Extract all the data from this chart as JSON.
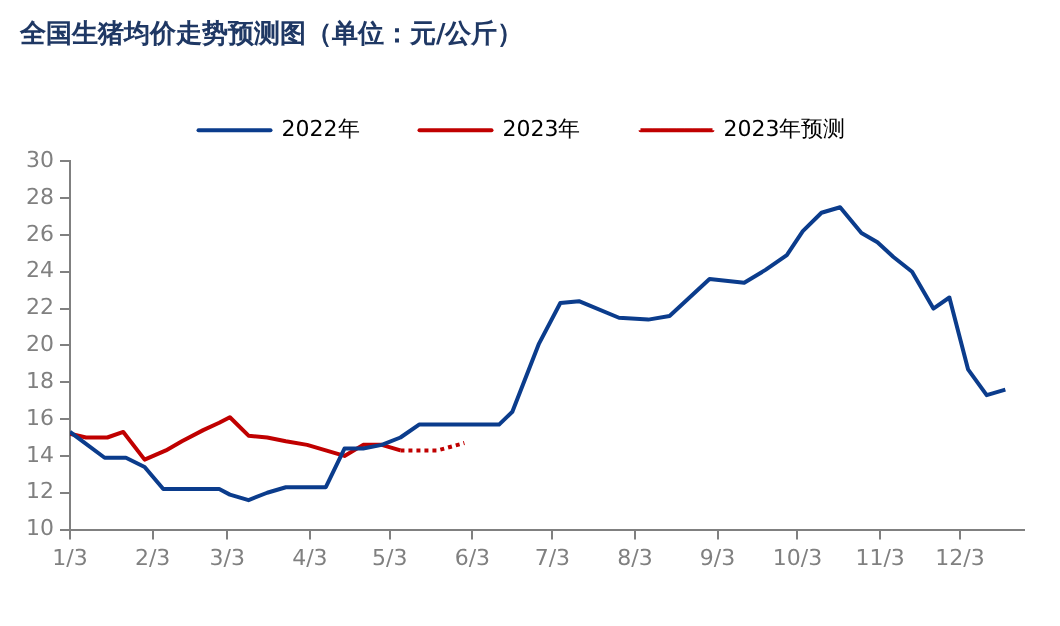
{
  "chart_data": {
    "type": "line",
    "title": "全国生猪均价走势预测图（单位：元/公斤）",
    "xlim": [
      "--01-03",
      "--12-27"
    ],
    "xticks": [
      {
        "value": "--01-03",
        "label": "1/3"
      },
      {
        "value": "--02-03",
        "label": "2/3"
      },
      {
        "value": "--03-03",
        "label": "3/3"
      },
      {
        "value": "--04-03",
        "label": "4/3"
      },
      {
        "value": "--05-03",
        "label": "5/3"
      },
      {
        "value": "--06-03",
        "label": "6/3"
      },
      {
        "value": "--07-03",
        "label": "7/3"
      },
      {
        "value": "--08-03",
        "label": "8/3"
      },
      {
        "value": "--09-03",
        "label": "9/3"
      },
      {
        "value": "--10-03",
        "label": "10/3"
      },
      {
        "value": "--11-03",
        "label": "11/3"
      },
      {
        "value": "--12-03",
        "label": "12/3"
      }
    ],
    "ylim": [
      10,
      30
    ],
    "yticks": [
      10,
      12,
      14,
      16,
      18,
      20,
      22,
      24,
      26,
      28,
      30
    ],
    "grid": false,
    "legend": "top",
    "marker": "none",
    "series": [
      {
        "name": "2022年",
        "color": "#0b3c8c",
        "line_style": "solid",
        "x": [
          "--01-03",
          "--01-16",
          "--01-24",
          "--01-31",
          "--02-07",
          "--02-14",
          "--02-21",
          "--02-28",
          "--03-04",
          "--03-11",
          "--03-18",
          "--03-25",
          "--04-02",
          "--04-09",
          "--04-16",
          "--04-23",
          "--04-30",
          "--05-07",
          "--05-14",
          "--05-22",
          "--05-30",
          "--06-13",
          "--06-18",
          "--06-28",
          "--07-06",
          "--07-13",
          "--07-28",
          "--08-08",
          "--08-16",
          "--08-31",
          "--09-13",
          "--09-21",
          "--09-29",
          "--10-05",
          "--10-12",
          "--10-19",
          "--10-27",
          "--11-02",
          "--11-08",
          "--11-15",
          "--11-23",
          "--11-29",
          "--12-06",
          "--12-13",
          "--12-20"
        ],
        "values": [
          15.3,
          13.9,
          13.9,
          13.4,
          12.2,
          12.2,
          12.2,
          12.2,
          11.9,
          11.6,
          12.0,
          12.3,
          12.3,
          12.3,
          14.4,
          14.4,
          14.6,
          15.0,
          15.7,
          15.7,
          15.7,
          15.7,
          16.4,
          20.1,
          22.3,
          22.4,
          21.5,
          21.4,
          21.6,
          23.6,
          23.4,
          24.1,
          24.9,
          26.2,
          27.2,
          27.5,
          26.1,
          25.6,
          24.8,
          24.0,
          22.0,
          22.6,
          18.7,
          17.3,
          17.6
        ]
      },
      {
        "name": "2023年",
        "color": "#c00000",
        "line_style": "solid",
        "x": [
          "--01-03",
          "--01-09",
          "--01-17",
          "--01-23",
          "--01-31",
          "--02-08",
          "--02-14",
          "--02-22",
          "--02-28",
          "--03-04",
          "--03-11",
          "--03-18",
          "--03-25",
          "--04-02",
          "--04-09",
          "--04-16",
          "--04-23",
          "--04-30",
          "--05-07"
        ],
        "values": [
          15.2,
          15.0,
          15.0,
          15.3,
          13.8,
          14.3,
          14.8,
          15.4,
          15.8,
          16.1,
          15.1,
          15.0,
          14.8,
          14.6,
          14.3,
          14.0,
          14.6,
          14.6,
          14.3
        ]
      },
      {
        "name": "2023年预测",
        "color": "#c00000",
        "line_style": "dotted",
        "x": [
          "--05-07",
          "--05-21",
          "--05-31"
        ],
        "values": [
          14.3,
          14.3,
          14.7
        ]
      }
    ]
  }
}
